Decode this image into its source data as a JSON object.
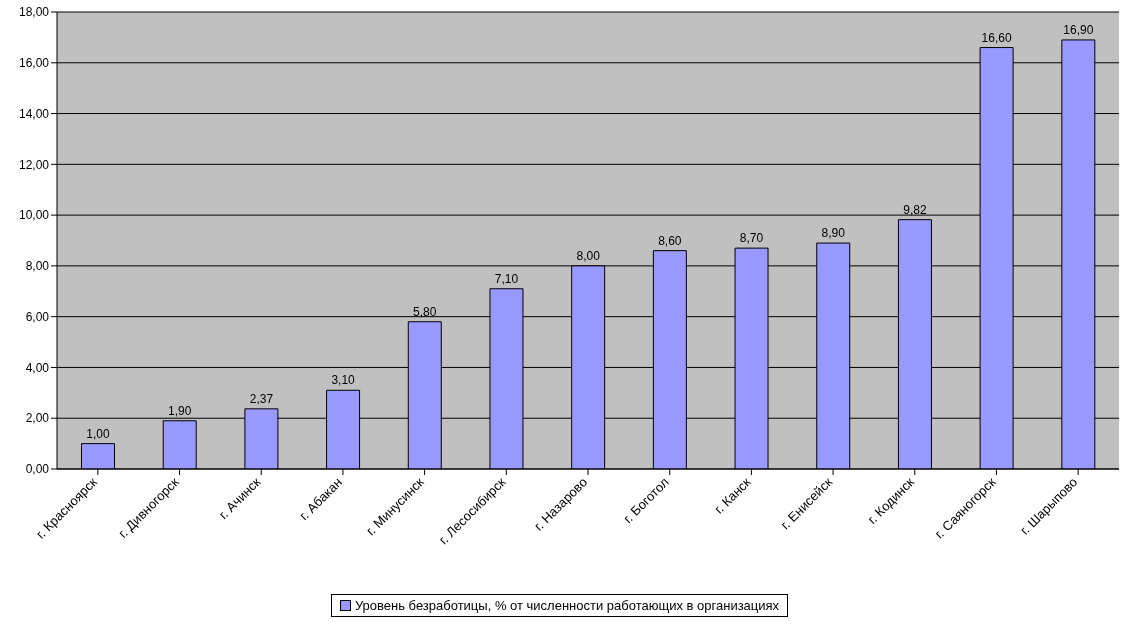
{
  "chart_data": {
    "type": "bar",
    "categories": [
      "г. Красноярск",
      "г. Дивногорск",
      "г. Ачинск",
      "г. Абакан",
      "г. Минусинск",
      "г. Лесосибирск",
      "г. Назарово",
      "г. Боготол",
      "г. Канск",
      "г. Енисейск",
      "г. Кодинск",
      "г. Саяногорск",
      "г. Шарыпово"
    ],
    "series": [
      {
        "name": "Уровень безработицы, % от численности работающих в организациях",
        "color": "#9999ff",
        "values": [
          1.0,
          1.9,
          2.37,
          3.1,
          5.8,
          7.1,
          8.0,
          8.6,
          8.7,
          8.9,
          9.82,
          16.6,
          16.9
        ],
        "value_labels": [
          "1,00",
          "1,90",
          "2,37",
          "3,10",
          "5,80",
          "7,10",
          "8,00",
          "8,60",
          "8,70",
          "8,90",
          "9,82",
          "16,60",
          "16,90"
        ]
      }
    ],
    "ylim": [
      0,
      18
    ],
    "yticks": [
      {
        "value": 0,
        "label": "0,00"
      },
      {
        "value": 2,
        "label": "2,00"
      },
      {
        "value": 4,
        "label": "4,00"
      },
      {
        "value": 6,
        "label": "6,00"
      },
      {
        "value": 8,
        "label": "8,00"
      },
      {
        "value": 10,
        "label": "10,00"
      },
      {
        "value": 12,
        "label": "12,00"
      },
      {
        "value": 14,
        "label": "14,00"
      },
      {
        "value": 16,
        "label": "16,00"
      },
      {
        "value": 18,
        "label": "18,00"
      }
    ],
    "grid": "y",
    "legend": "bottom"
  }
}
